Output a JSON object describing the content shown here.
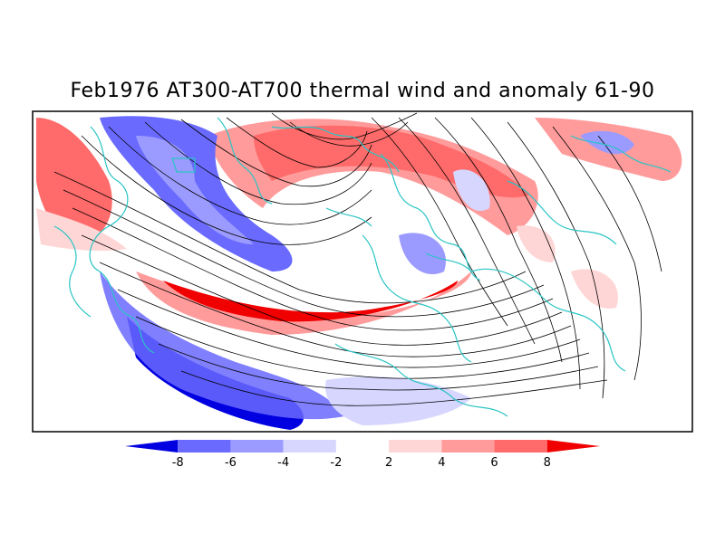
{
  "title": "Feb1976 AT300-AT700 thermal wind and anomaly 61-90",
  "colorbar": {
    "labels": [
      "-8",
      "-6",
      "-4",
      "-2",
      "2",
      "4",
      "6",
      "8"
    ],
    "colors": [
      "#0000e0",
      "#6a6aff",
      "#9b9bff",
      "#d6d6ff",
      "#ffffff",
      "#ffd6d6",
      "#ff9b9b",
      "#ff6a6a",
      "#f00000"
    ]
  },
  "map": {
    "projection": "polar-stereographic-north",
    "coastline_color": "#29c4c4",
    "streamline_color": "#000000"
  }
}
